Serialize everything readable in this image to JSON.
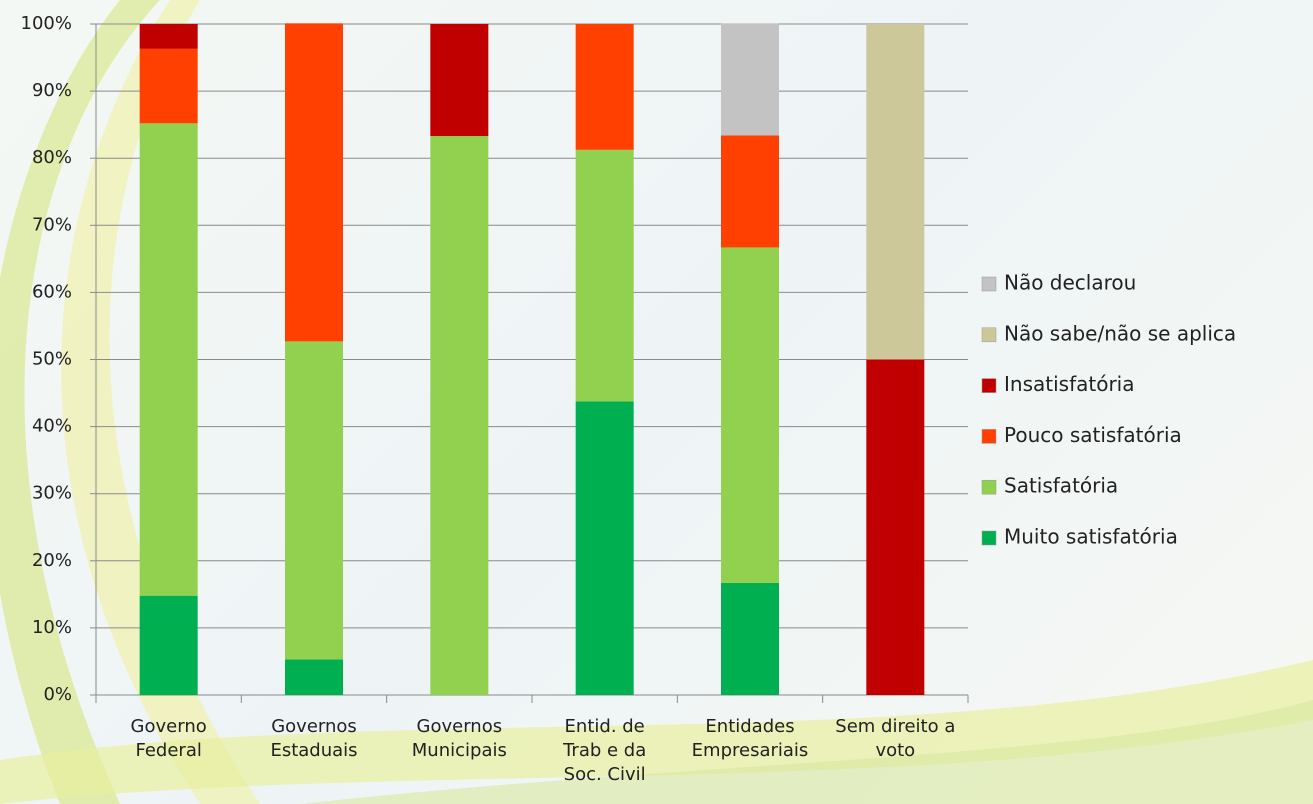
{
  "chart_data": {
    "type": "stacked_bar",
    "categories": [
      "Governo\nFederal",
      "Governos\nEstaduais",
      "Governos\nMunicipais",
      "Entid. de\nTrab e da\nSoc. Civil",
      "Entidades\nEmpresariais",
      "Sem direito a\nvoto"
    ],
    "series": [
      {
        "name": "Muito satisfatória",
        "color": "#00b050",
        "values": [
          14.8,
          5.3,
          0,
          43.75,
          16.7,
          0
        ]
      },
      {
        "name": "Satisfatória",
        "color": "#92d050",
        "values": [
          70.4,
          47.4,
          83.3,
          37.5,
          50,
          0
        ]
      },
      {
        "name": "Pouco satisfatória",
        "color": "#ff4000",
        "values": [
          11.1,
          47.4,
          0,
          18.75,
          16.7,
          0
        ]
      },
      {
        "name": "Insatisfatória",
        "color": "#c00000",
        "values": [
          3.7,
          0,
          16.7,
          0,
          0,
          50
        ]
      },
      {
        "name": "Não sabe/não se aplica",
        "color": "#ccc89a",
        "values": [
          0,
          0,
          0,
          0,
          0,
          50
        ]
      },
      {
        "name": "Não declarou",
        "color": "#c3c3c3",
        "values": [
          0,
          0,
          0,
          0,
          16.7,
          0
        ]
      }
    ],
    "ylim": [
      0,
      100
    ],
    "yticks": [
      {
        "value": 0,
        "label": "0%"
      },
      {
        "value": 10,
        "label": "10%"
      },
      {
        "value": 20,
        "label": "20%"
      },
      {
        "value": 30,
        "label": "30%"
      },
      {
        "value": 40,
        "label": "40%"
      },
      {
        "value": 50,
        "label": "50%"
      },
      {
        "value": 60,
        "label": "60%"
      },
      {
        "value": 70,
        "label": "70%"
      },
      {
        "value": 80,
        "label": "80%"
      },
      {
        "value": 90,
        "label": "90%"
      },
      {
        "value": 100,
        "label": "100%"
      }
    ],
    "grid": true,
    "legend": "right"
  }
}
